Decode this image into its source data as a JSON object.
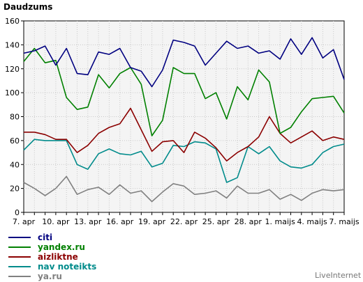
{
  "chart_data": {
    "type": "line",
    "title": "Daudzums",
    "ylim": [
      0,
      160
    ],
    "y_ticks": [
      "0",
      "20",
      "40",
      "60",
      "80",
      "100",
      "120",
      "140",
      "160"
    ],
    "x": [
      "7. apr",
      "8. apr",
      "9. apr",
      "10. apr",
      "11. apr",
      "12. apr",
      "13. apr",
      "14. apr",
      "15. apr",
      "16. apr",
      "17. apr",
      "18. apr",
      "19. apr",
      "20. apr",
      "21. apr",
      "22. apr",
      "23. apr",
      "24. apr",
      "25. apr",
      "26. apr",
      "27. apr",
      "28. apr",
      "29. apr",
      "30. apr",
      "1. maijs",
      "2. maijs",
      "3. maijs",
      "4. maijs",
      "5. maijs",
      "6. maijs",
      "7. maijs"
    ],
    "x_tick_labels": [
      {
        "index": 0,
        "label": "7. apr"
      },
      {
        "index": 3,
        "label": "10. apr"
      },
      {
        "index": 6,
        "label": "13. apr"
      },
      {
        "index": 9,
        "label": "16. apr"
      },
      {
        "index": 12,
        "label": "19. apr"
      },
      {
        "index": 15,
        "label": "22. apr"
      },
      {
        "index": 18,
        "label": "25. apr"
      },
      {
        "index": 21,
        "label": "28. apr"
      },
      {
        "index": 24,
        "label": "1. maijs"
      },
      {
        "index": 27,
        "label": "4. maijs"
      },
      {
        "index": 30,
        "label": "7. maijs"
      }
    ],
    "grid": true,
    "legend_position": "bottom-left",
    "series": [
      {
        "name": "citi",
        "color": "#000080",
        "values": [
          133,
          135,
          139,
          123,
          137,
          116,
          115,
          134,
          132,
          137,
          121,
          118,
          105,
          119,
          144,
          142,
          139,
          123,
          133,
          143,
          137,
          139,
          133,
          135,
          128,
          145,
          132,
          146,
          129,
          136,
          111
        ]
      },
      {
        "name": "yandex.ru",
        "color": "#008000",
        "values": [
          126,
          137,
          125,
          127,
          96,
          86,
          88,
          115,
          104,
          116,
          121,
          107,
          64,
          77,
          121,
          116,
          116,
          95,
          100,
          78,
          105,
          94,
          119,
          109,
          66,
          71,
          84,
          95,
          96,
          97,
          83
        ]
      },
      {
        "name": "aizliktne",
        "color": "#8b0000",
        "values": [
          67,
          67,
          65,
          61,
          61,
          50,
          56,
          66,
          71,
          74,
          87,
          69,
          51,
          59,
          60,
          50,
          67,
          62,
          54,
          43,
          50,
          55,
          63,
          80,
          66,
          58,
          63,
          68,
          60,
          63,
          61
        ]
      },
      {
        "name": "nav noteikts",
        "color": "#008b8b",
        "values": [
          52,
          61,
          60,
          60,
          60,
          40,
          36,
          49,
          53,
          49,
          48,
          51,
          38,
          41,
          56,
          55,
          59,
          58,
          53,
          25,
          29,
          55,
          49,
          55,
          43,
          38,
          37,
          40,
          50,
          55,
          57
        ]
      },
      {
        "name": "ya.ru",
        "color": "#808080",
        "values": [
          25,
          20,
          14,
          20,
          30,
          15,
          19,
          21,
          15,
          23,
          16,
          18,
          9,
          17,
          24,
          22,
          15,
          16,
          18,
          12,
          22,
          16,
          16,
          19,
          11,
          15,
          10,
          16,
          19,
          18,
          19
        ]
      }
    ]
  },
  "brand": "LiveInternet"
}
